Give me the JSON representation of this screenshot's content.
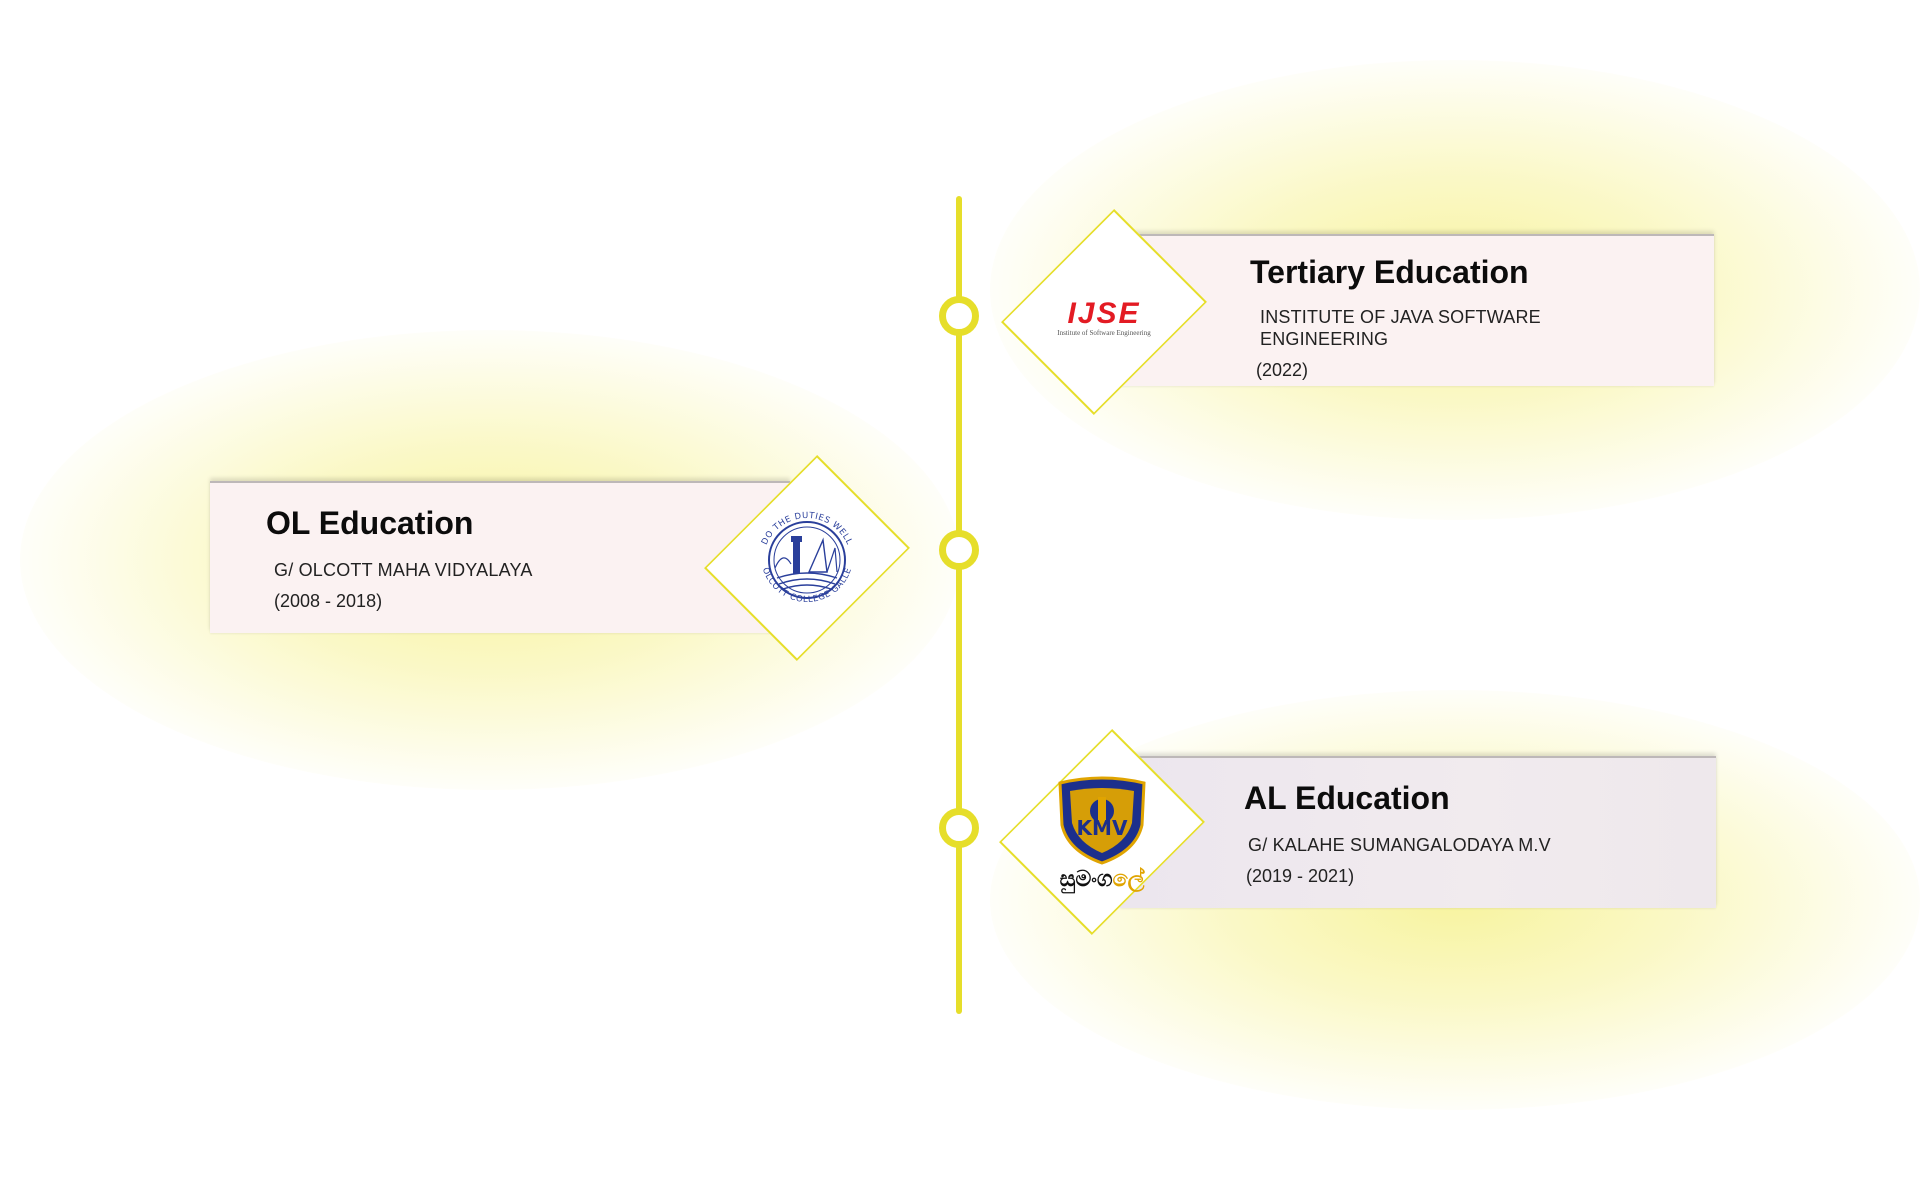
{
  "colors": {
    "accent": "#e6de2a",
    "card_bg": "#fbf2f2",
    "card_bg_alt": "#ece6ee",
    "ijse_red": "#e31b23",
    "olcott_blue": "#2a3f9b",
    "kmv_blue": "#1c2f8c",
    "kmv_gold": "#e0a400"
  },
  "timeline": {
    "entries": [
      {
        "title": "Tertiary Education",
        "institution_line1": "INSTITUTE OF JAVA SOFTWARE",
        "institution_line2": "ENGINEERING",
        "years": "(2022)",
        "logo": {
          "icon": "ijse-logo-icon",
          "wordmark": "IJSE",
          "tagline": "Institute of Software Engineering"
        }
      },
      {
        "title": "OL Education",
        "institution": "G/ OLCOTT MAHA VIDYALAYA",
        "years": "(2008 - 2018)",
        "logo": {
          "icon": "olcott-college-crest-icon",
          "motto": "DO THE DUTIES WELL",
          "name": "OLCOTT COLLEGE GALLE"
        }
      },
      {
        "title": "AL Education",
        "institution": "G/ KALAHE SUMANGALODAYA M.V",
        "years": "(2019 - 2021)",
        "logo": {
          "icon": "kmv-shield-crest-icon",
          "initials": "KMV",
          "wordmark_a": "සුමංග",
          "wordmark_b": "ලේ"
        }
      }
    ]
  }
}
